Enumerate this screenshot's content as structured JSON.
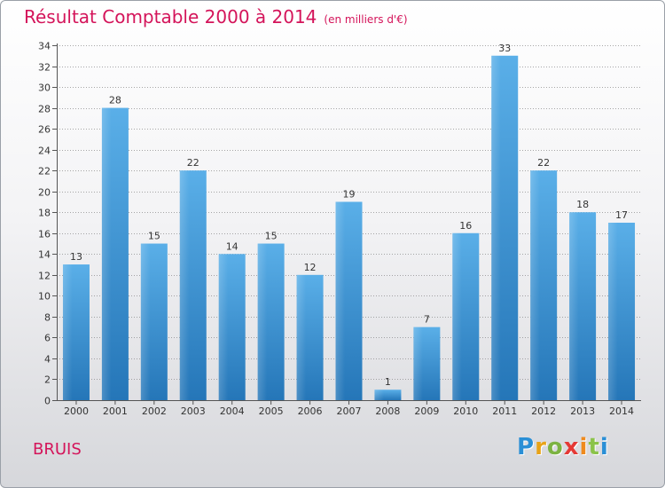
{
  "header": {
    "title": "Résultat Comptable 2000 à 2014",
    "subtitle": "(en milliers d'€)"
  },
  "footer": {
    "place": "BRUIS",
    "logo": [
      "P",
      "r",
      "o",
      "x",
      "i",
      "t",
      "i"
    ]
  },
  "colors": {
    "title": "#d4145a",
    "bar_light": "#5aafe8",
    "bar_dark": "#2576b8",
    "grid": "#8a8a8a"
  },
  "chart_data": {
    "type": "bar",
    "title": "Résultat Comptable 2000 à 2014",
    "xlabel": "",
    "ylabel": "",
    "ylim": [
      0,
      34
    ],
    "ytick_step": 2,
    "grid": true,
    "categories": [
      "2000",
      "2001",
      "2002",
      "2003",
      "2004",
      "2005",
      "2006",
      "2007",
      "2008",
      "2009",
      "2010",
      "2011",
      "2012",
      "2013",
      "2014"
    ],
    "values": [
      13,
      28,
      15,
      22,
      14,
      15,
      12,
      19,
      1,
      7,
      16,
      33,
      22,
      18,
      17
    ]
  }
}
